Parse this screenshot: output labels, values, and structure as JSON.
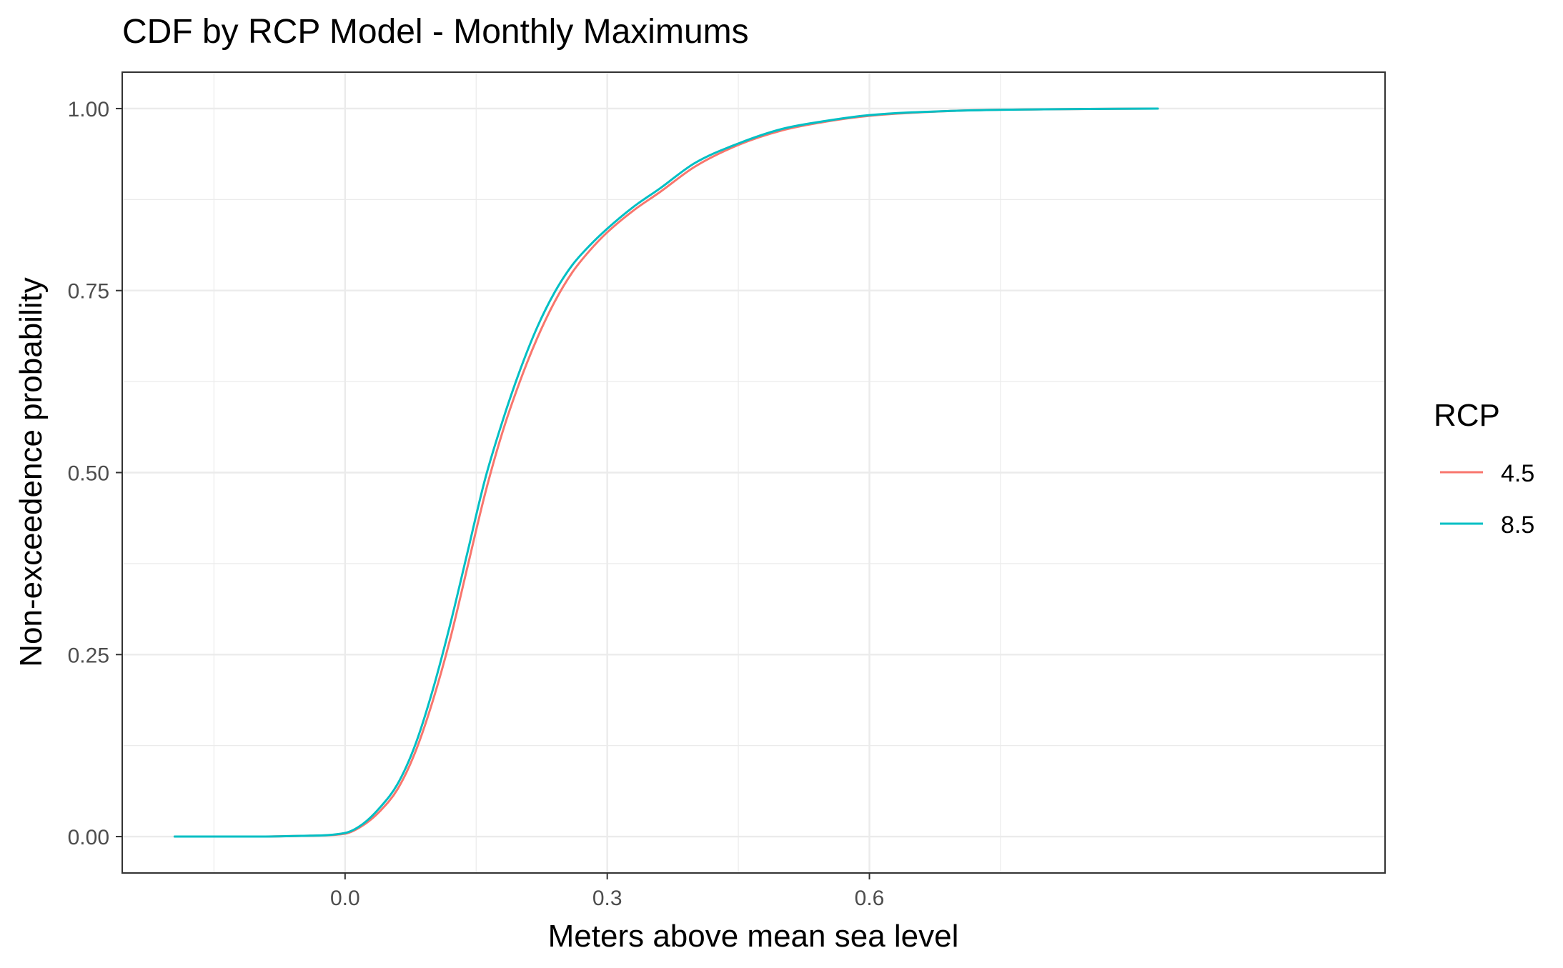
{
  "chart_data": {
    "type": "line",
    "title": "CDF by RCP Model - Monthly Maximums",
    "xlabel": "Meters above mean sea level",
    "ylabel": "Non-exceedence probability",
    "xlim": [
      -0.255,
      1.19
    ],
    "ylim": [
      -0.05,
      1.05
    ],
    "x_ticks": [
      0.0,
      0.3,
      0.6
    ],
    "x_tick_labels": [
      "0.0",
      "0.3",
      "0.6"
    ],
    "y_ticks": [
      0.0,
      0.25,
      0.5,
      0.75,
      1.0
    ],
    "y_tick_labels": [
      "0.00",
      "0.25",
      "0.50",
      "0.75",
      "1.00"
    ],
    "grid": true,
    "legend": {
      "title": "RCP",
      "position": "right",
      "entries": [
        "4.5",
        "8.5"
      ]
    },
    "series": [
      {
        "name": "4.5",
        "color": "#F8766D",
        "x": [
          -0.195,
          -0.15,
          -0.1,
          -0.05,
          0.0,
          0.02,
          0.04,
          0.06,
          0.08,
          0.1,
          0.12,
          0.14,
          0.16,
          0.18,
          0.2,
          0.22,
          0.24,
          0.26,
          0.28,
          0.3,
          0.33,
          0.36,
          0.4,
          0.45,
          0.5,
          0.55,
          0.6,
          0.7,
          0.8,
          0.93
        ],
        "y": [
          0.0,
          0.0,
          0.0,
          0.001,
          0.004,
          0.015,
          0.035,
          0.065,
          0.115,
          0.185,
          0.27,
          0.37,
          0.47,
          0.555,
          0.625,
          0.685,
          0.735,
          0.775,
          0.805,
          0.83,
          0.86,
          0.885,
          0.92,
          0.95,
          0.97,
          0.982,
          0.99,
          0.997,
          0.999,
          1.0
        ]
      },
      {
        "name": "8.5",
        "color": "#00BFC4",
        "x": [
          -0.195,
          -0.15,
          -0.1,
          -0.05,
          0.0,
          0.02,
          0.04,
          0.06,
          0.08,
          0.1,
          0.12,
          0.14,
          0.16,
          0.18,
          0.2,
          0.22,
          0.24,
          0.26,
          0.28,
          0.3,
          0.33,
          0.36,
          0.4,
          0.45,
          0.5,
          0.55,
          0.6,
          0.7,
          0.8,
          0.93
        ],
        "y": [
          0.0,
          0.0,
          0.0,
          0.001,
          0.005,
          0.017,
          0.04,
          0.072,
          0.125,
          0.2,
          0.29,
          0.39,
          0.49,
          0.57,
          0.64,
          0.7,
          0.748,
          0.785,
          0.812,
          0.835,
          0.865,
          0.89,
          0.925,
          0.952,
          0.972,
          0.983,
          0.991,
          0.997,
          0.999,
          1.0
        ]
      }
    ]
  }
}
